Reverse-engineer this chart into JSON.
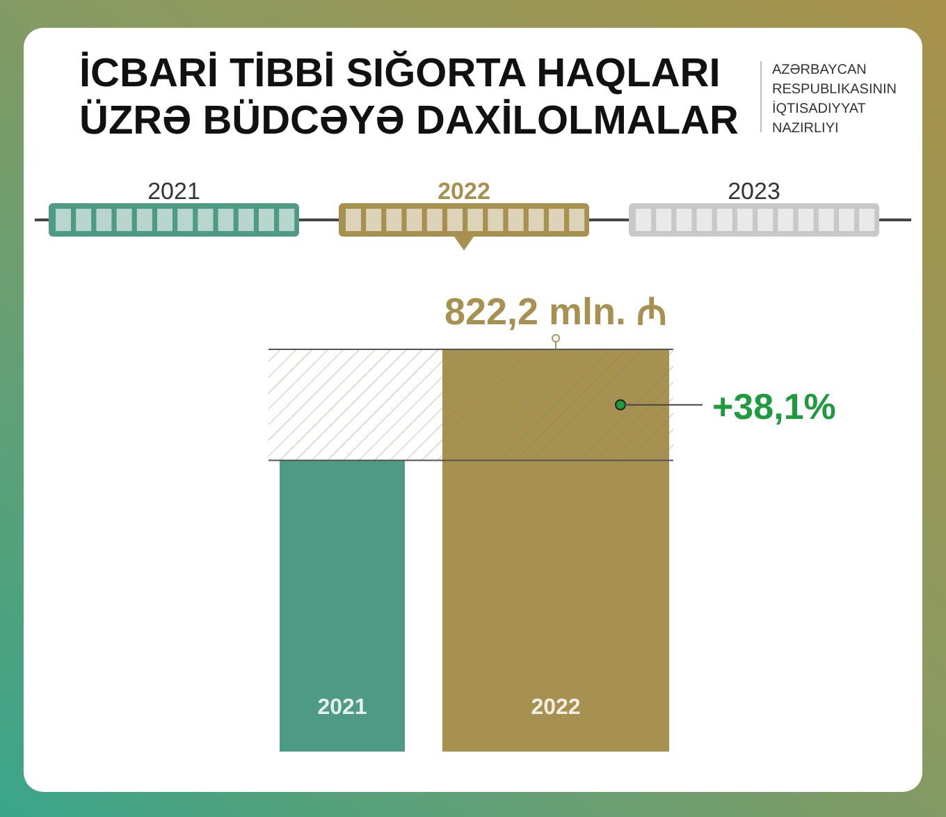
{
  "chart_data": {
    "type": "bar",
    "title": "İCBARİ TİBBİ SIĞORTA HAQLARI\nÜZRƏ BÜDCƏYƏ DAXİLOLMALAR",
    "subtitle": "AZƏRBAYCAN\nRESPUBLIKASININ\nİQTISADIYYAT\nNAZIRLIYI",
    "categories": [
      "2021",
      "2022"
    ],
    "values": [
      595.4,
      822.2
    ],
    "colors": [
      "#4e9a84",
      "#a79150"
    ],
    "value_labels": [
      null,
      "822,2 mln. ₼"
    ],
    "bands": [
      {
        "axis": "y",
        "from": 595.4,
        "to": 822.2,
        "label": "+38,1%",
        "color": "#555555"
      }
    ],
    "annotations": [
      "2021",
      "2022",
      "2023"
    ]
  }
}
